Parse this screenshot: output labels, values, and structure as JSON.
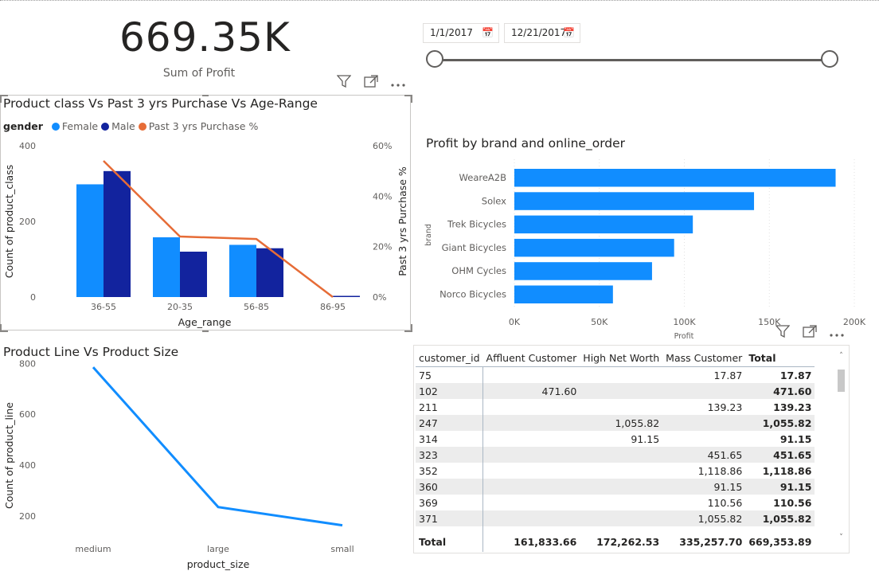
{
  "kpi": {
    "value": "669.35K",
    "label": "Sum of Profit"
  },
  "date_slicer": {
    "start_date": "1/1/2017",
    "end_date": "12/21/2017",
    "start_fraction": 0.0,
    "end_fraction": 1.0
  },
  "visual_header": {
    "icons": [
      "filter-icon",
      "focus-mode-icon",
      "more-options-icon"
    ]
  },
  "chart_data": [
    {
      "type": "bar",
      "title": "Product class Vs Past 3 yrs Purchase Vs Age-Range",
      "legend_title": "gender",
      "legend": [
        "Female",
        "Male",
        "Past 3 yrs Purchase %"
      ],
      "categories": [
        "36-55",
        "20-35",
        "56-85",
        "86-95"
      ],
      "series": [
        {
          "name": "Female",
          "type": "bar",
          "color": "#118dff",
          "values": [
            298,
            158,
            138,
            0
          ]
        },
        {
          "name": "Male",
          "type": "bar",
          "color": "#12239e",
          "values": [
            333,
            120,
            129,
            2
          ]
        },
        {
          "name": "Past 3 yrs Purchase %",
          "type": "line",
          "axis": "secondary",
          "color": "#e66c37",
          "values": [
            54,
            24,
            23,
            0
          ]
        }
      ],
      "xlabel": "Age_range",
      "ylabel": "Count of product_class",
      "y2label": "Past 3 yrs Purchase %",
      "ylim": [
        0,
        400
      ],
      "yticks": [
        "0",
        "200",
        "400"
      ],
      "y2lim": [
        0,
        60
      ],
      "y2ticks": [
        "0%",
        "20%",
        "40%",
        "60%"
      ]
    },
    {
      "type": "bar",
      "orientation": "horizontal",
      "title": "Profit by brand and online_order",
      "categories": [
        "WeareA2B",
        "Solex",
        "Trek Bicycles",
        "Giant Bicycles",
        "OHM Cycles",
        "Norco Bicycles"
      ],
      "values": [
        189000,
        141000,
        105000,
        94000,
        81000,
        58000
      ],
      "color": "#118dff",
      "xlabel": "Profit",
      "ylabel": "brand",
      "xlim": [
        0,
        200000
      ],
      "xticks": [
        "0K",
        "50K",
        "100K",
        "150K",
        "200K"
      ]
    },
    {
      "type": "line",
      "title": "Product Line Vs Product Size",
      "categories": [
        "medium",
        "large",
        "small"
      ],
      "values": [
        785,
        235,
        163
      ],
      "color": "#118dff",
      "xlabel": "product_size",
      "ylabel": "Count of product_line",
      "ylim": [
        140,
        820
      ],
      "yticks": [
        "200",
        "400",
        "600",
        "800"
      ]
    }
  ],
  "matrix": {
    "columns": [
      "customer_id",
      "Affluent Customer",
      "High Net Worth",
      "Mass Customer",
      "Total"
    ],
    "rows": [
      [
        "75",
        "",
        "",
        "17.87",
        "17.87"
      ],
      [
        "102",
        "471.60",
        "",
        "",
        "471.60"
      ],
      [
        "211",
        "",
        "",
        "139.23",
        "139.23"
      ],
      [
        "247",
        "",
        "1,055.82",
        "",
        "1,055.82"
      ],
      [
        "314",
        "",
        "91.15",
        "",
        "91.15"
      ],
      [
        "323",
        "",
        "",
        "451.65",
        "451.65"
      ],
      [
        "352",
        "",
        "",
        "1,118.86",
        "1,118.86"
      ],
      [
        "360",
        "",
        "",
        "91.15",
        "91.15"
      ],
      [
        "369",
        "",
        "",
        "110.56",
        "110.56"
      ],
      [
        "371",
        "",
        "",
        "1,055.82",
        "1,055.82"
      ]
    ],
    "total": [
      "Total",
      "161,833.66",
      "172,262.53",
      "335,257.70",
      "669,353.89"
    ]
  }
}
